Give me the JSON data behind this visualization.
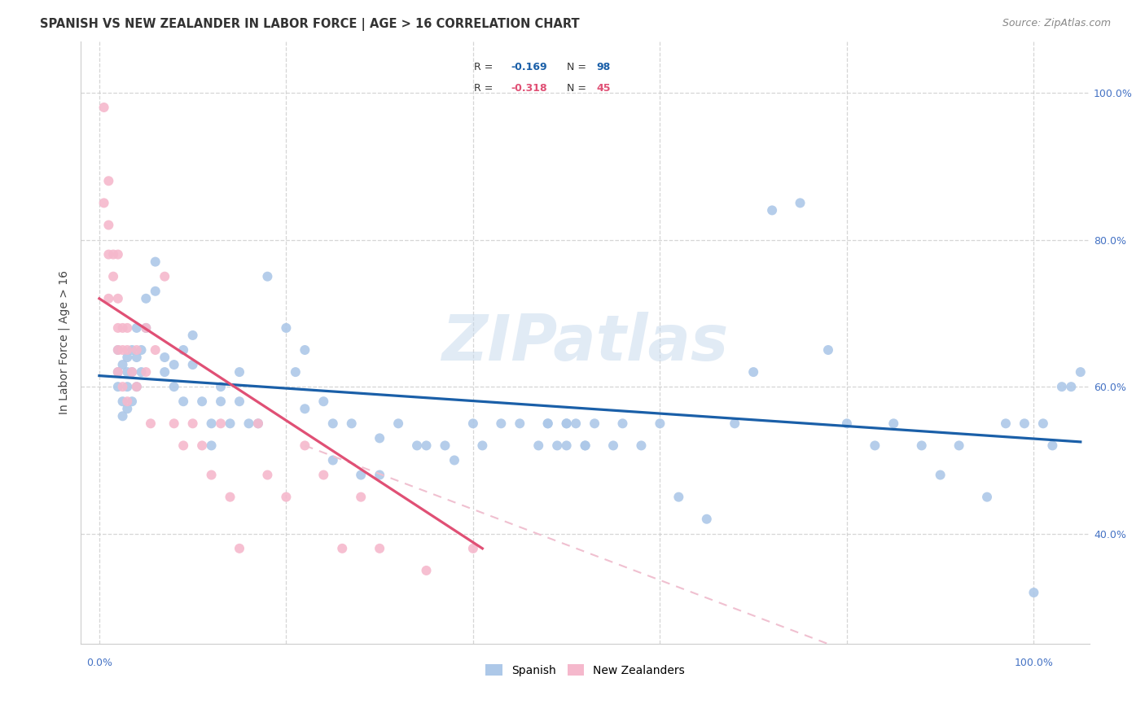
{
  "title": "SPANISH VS NEW ZEALANDER IN LABOR FORCE | AGE > 16 CORRELATION CHART",
  "source": "Source: ZipAtlas.com",
  "ylabel": "In Labor Force | Age > 16",
  "xlim": [
    -0.02,
    1.06
  ],
  "ylim": [
    0.25,
    1.07
  ],
  "ytick_vals": [
    0.4,
    0.6,
    0.8,
    1.0
  ],
  "ytick_labels": [
    "40.0%",
    "60.0%",
    "80.0%",
    "100.0%"
  ],
  "xtick_label_left": "0.0%",
  "xtick_label_right": "100.0%",
  "legend_labels": [
    "Spanish",
    "New Zealanders"
  ],
  "blue_color": "#adc8e8",
  "pink_color": "#f5b8cc",
  "blue_line_color": "#1a5fa8",
  "pink_line_color": "#e05075",
  "pink_dash_color": "#f0c0d0",
  "tick_color": "#4472c4",
  "watermark": "ZIPatlas",
  "blue_R": "-0.169",
  "blue_N": "98",
  "pink_R": "-0.318",
  "pink_N": "45",
  "blue_scatter_x": [
    0.02,
    0.02,
    0.02,
    0.025,
    0.025,
    0.025,
    0.03,
    0.03,
    0.03,
    0.03,
    0.035,
    0.035,
    0.035,
    0.04,
    0.04,
    0.04,
    0.045,
    0.045,
    0.05,
    0.05,
    0.06,
    0.06,
    0.07,
    0.07,
    0.08,
    0.08,
    0.09,
    0.09,
    0.1,
    0.1,
    0.11,
    0.12,
    0.12,
    0.13,
    0.13,
    0.14,
    0.15,
    0.15,
    0.16,
    0.17,
    0.18,
    0.2,
    0.21,
    0.22,
    0.22,
    0.24,
    0.25,
    0.27,
    0.28,
    0.3,
    0.32,
    0.34,
    0.35,
    0.37,
    0.38,
    0.4,
    0.41,
    0.43,
    0.45,
    0.47,
    0.48,
    0.49,
    0.5,
    0.5,
    0.51,
    0.52,
    0.53,
    0.55,
    0.56,
    0.58,
    0.6,
    0.62,
    0.65,
    0.68,
    0.7,
    0.72,
    0.75,
    0.78,
    0.8,
    0.83,
    0.85,
    0.88,
    0.9,
    0.92,
    0.95,
    0.97,
    0.99,
    1.0,
    1.01,
    1.02,
    1.03,
    1.04,
    1.05,
    0.5,
    0.48,
    0.52,
    0.3,
    0.25
  ],
  "blue_scatter_y": [
    0.62,
    0.65,
    0.6,
    0.63,
    0.58,
    0.56,
    0.64,
    0.62,
    0.6,
    0.57,
    0.65,
    0.62,
    0.58,
    0.68,
    0.64,
    0.6,
    0.65,
    0.62,
    0.72,
    0.68,
    0.77,
    0.73,
    0.64,
    0.62,
    0.63,
    0.6,
    0.65,
    0.58,
    0.67,
    0.63,
    0.58,
    0.55,
    0.52,
    0.58,
    0.6,
    0.55,
    0.62,
    0.58,
    0.55,
    0.55,
    0.75,
    0.68,
    0.62,
    0.57,
    0.65,
    0.58,
    0.5,
    0.55,
    0.48,
    0.53,
    0.55,
    0.52,
    0.52,
    0.52,
    0.5,
    0.55,
    0.52,
    0.55,
    0.55,
    0.52,
    0.55,
    0.52,
    0.55,
    0.52,
    0.55,
    0.52,
    0.55,
    0.52,
    0.55,
    0.52,
    0.55,
    0.45,
    0.42,
    0.55,
    0.62,
    0.84,
    0.85,
    0.65,
    0.55,
    0.52,
    0.55,
    0.52,
    0.48,
    0.52,
    0.45,
    0.55,
    0.55,
    0.32,
    0.55,
    0.52,
    0.6,
    0.6,
    0.62,
    0.55,
    0.55,
    0.52,
    0.48,
    0.55
  ],
  "pink_scatter_x": [
    0.005,
    0.005,
    0.01,
    0.01,
    0.01,
    0.01,
    0.015,
    0.015,
    0.02,
    0.02,
    0.02,
    0.02,
    0.02,
    0.025,
    0.025,
    0.025,
    0.03,
    0.03,
    0.03,
    0.035,
    0.04,
    0.04,
    0.05,
    0.05,
    0.055,
    0.06,
    0.07,
    0.08,
    0.09,
    0.1,
    0.11,
    0.12,
    0.13,
    0.14,
    0.15,
    0.17,
    0.18,
    0.2,
    0.22,
    0.24,
    0.26,
    0.28,
    0.3,
    0.35,
    0.4
  ],
  "pink_scatter_y": [
    0.98,
    0.85,
    0.88,
    0.82,
    0.78,
    0.72,
    0.78,
    0.75,
    0.78,
    0.72,
    0.68,
    0.65,
    0.62,
    0.68,
    0.65,
    0.6,
    0.68,
    0.65,
    0.58,
    0.62,
    0.65,
    0.6,
    0.68,
    0.62,
    0.55,
    0.65,
    0.75,
    0.55,
    0.52,
    0.55,
    0.52,
    0.48,
    0.55,
    0.45,
    0.38,
    0.55,
    0.48,
    0.45,
    0.52,
    0.48,
    0.38,
    0.45,
    0.38,
    0.35,
    0.38
  ],
  "blue_trend": [
    0.0,
    1.05,
    0.615,
    0.525
  ],
  "pink_trend_solid": [
    0.0,
    0.41,
    0.72,
    0.38
  ],
  "pink_trend_dash": [
    0.22,
    1.05,
    0.52,
    0.12
  ],
  "background_color": "#ffffff",
  "grid_color": "#cccccc",
  "title_fontsize": 10.5,
  "marker_size": 75
}
